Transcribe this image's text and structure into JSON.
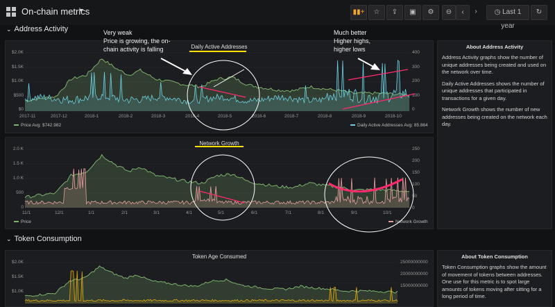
{
  "header": {
    "title": "On-chain metrics",
    "time_range": "Last 1 year",
    "icons": [
      "add-panel-icon",
      "star-icon",
      "share-icon",
      "save-icon",
      "settings-icon",
      "zoom-out-icon",
      "back-icon",
      "forward-icon",
      "clock-icon",
      "refresh-icon"
    ]
  },
  "rows": {
    "address_activity": "Address Activity",
    "token_consumption": "Token Consumption"
  },
  "panels": {
    "daily_active": {
      "title": "Daily Active Addresses",
      "y_left": [
        "$2.0K",
        "$1.5K",
        "$1.0K",
        "$500",
        "$0"
      ],
      "y_right": [
        "400",
        "300",
        "200",
        "100",
        "0"
      ],
      "x": [
        "2017-11",
        "2017-12",
        "2018-1",
        "2018-2",
        "2018-3",
        "2018-4",
        "2018-5",
        "2018-6",
        "2018-7",
        "2018-8",
        "2018-9",
        "2018-10"
      ],
      "legend_left": "Price  Avg: $742.982",
      "legend_right": "Daily Active Addresses  Avg: 85.864"
    },
    "network_growth": {
      "title": "Network Growth",
      "y_left": [
        "2.0 K",
        "1.5 K",
        "1.0 K",
        "500",
        "0"
      ],
      "y_right": [
        "250",
        "200",
        "150",
        "100",
        "50",
        "0"
      ],
      "x": [
        "11/1",
        "12/1",
        "1/1",
        "2/1",
        "3/1",
        "4/1",
        "5/1",
        "6/1",
        "7/1",
        "8/1",
        "9/1",
        "10/1"
      ],
      "legend_left": "Price",
      "legend_right": "Network Growth"
    },
    "token_age": {
      "title": "Token Age Consumed",
      "y_left": [
        "$2.0K",
        "$1.5K",
        "$1.0K"
      ],
      "y_right": [
        "25000000000",
        "20000000000",
        "15000000000"
      ]
    }
  },
  "info": {
    "address_title": "About Address Activity",
    "address_p1": "Address Activity graphs show the number of unique addresses being created and used on the network over time.",
    "address_p2": "Daily Active Addresses shows the number of unique addresses that participated in transactions for a given day.",
    "address_p3": "Network Growth shows the number of new addresses being created on the network each day.",
    "token_title": "About Token Consumption",
    "token_p1": "Token Consumption graphs show the amount of movement of tokens between addresses. One use for this metric is to spot large amounts of tokens moving after sitting for a long period of time."
  },
  "annotations": {
    "left_1": "Very weak",
    "left_2": "Price is growing, the on-",
    "left_3": "chain activity is falling",
    "right_1": "Much better",
    "right_2": "Higher highs,",
    "right_3": "higher lows"
  },
  "colors": {
    "price": "#7eb26d",
    "active": "#6ed0e0",
    "growth": "#e8a1a1",
    "annotation": "#ff2a6d",
    "underline": "#ffe000"
  }
}
